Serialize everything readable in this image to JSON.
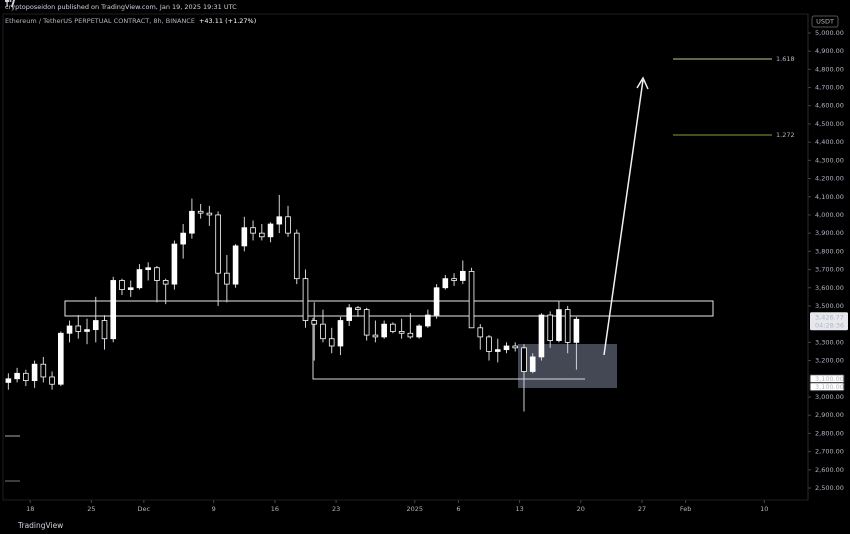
{
  "header": {
    "byline": "cryptoposeidon published on TradingView.com, Jan 19, 2025 19:31 UTC",
    "symbol": "Ethereum / TetherUS PERPETUAL CONTRACT, 8h, BINANCE",
    "change": "+43.11 (+1.27%)"
  },
  "chart_data": {
    "type": "candlestick",
    "open": [
      3080,
      3100,
      3130,
      3090,
      3180,
      3110,
      3070,
      3350,
      3390,
      3360,
      3370,
      3420,
      3320,
      3640,
      3590,
      3600,
      3700,
      3710,
      3640,
      3620,
      3840,
      3900,
      4020,
      4010,
      4000,
      3680,
      3620,
      3830,
      3930,
      3900,
      3880,
      3950,
      3990,
      3900,
      3650,
      3420,
      3400,
      3320,
      3280,
      3420,
      3490,
      3480,
      3340,
      3330,
      3400,
      3360,
      3350,
      3330,
      3390,
      3450,
      3600,
      3650,
      3640,
      3690,
      3380,
      3330,
      3250,
      3260,
      3280,
      3270,
      3140,
      3220,
      3450,
      3310,
      3480,
      3300
    ],
    "high": [
      3130,
      3160,
      3150,
      3200,
      3220,
      3140,
      3360,
      3420,
      3450,
      3430,
      3550,
      3450,
      3660,
      3650,
      3640,
      3730,
      3740,
      3720,
      3650,
      3860,
      3950,
      4090,
      4060,
      4050,
      4020,
      3780,
      3840,
      3990,
      3970,
      3950,
      3960,
      4110,
      4050,
      3920,
      3700,
      3520,
      3480,
      3380,
      3440,
      3510,
      3500,
      3490,
      3420,
      3420,
      3410,
      3430,
      3460,
      3400,
      3480,
      3620,
      3670,
      3680,
      3750,
      3710,
      3400,
      3340,
      3320,
      3300,
      3300,
      3290,
      3240,
      3460,
      3470,
      3530,
      3500,
      3440
    ],
    "low": [
      3040,
      3080,
      3060,
      3050,
      3080,
      3040,
      3060,
      3300,
      3320,
      3290,
      3300,
      3260,
      3300,
      3560,
      3550,
      3590,
      3640,
      3520,
      3510,
      3590,
      3760,
      3870,
      3980,
      3940,
      3500,
      3520,
      3600,
      3800,
      3860,
      3860,
      3850,
      3900,
      3880,
      3620,
      3380,
      3200,
      3300,
      3240,
      3230,
      3390,
      3440,
      3310,
      3300,
      3320,
      3350,
      3320,
      3320,
      3320,
      3380,
      3430,
      3590,
      3610,
      3620,
      3380,
      3260,
      3200,
      3190,
      3240,
      3250,
      2920,
      3130,
      3200,
      3270,
      3300,
      3240,
      3150
    ],
    "close": [
      3100,
      3130,
      3090,
      3180,
      3110,
      3070,
      3350,
      3390,
      3360,
      3370,
      3420,
      3320,
      3640,
      3590,
      3600,
      3700,
      3710,
      3640,
      3620,
      3840,
      3900,
      4020,
      4010,
      4000,
      3680,
      3620,
      3830,
      3930,
      3900,
      3880,
      3950,
      3990,
      3900,
      3650,
      3420,
      3400,
      3320,
      3280,
      3420,
      3490,
      3480,
      3340,
      3330,
      3400,
      3360,
      3350,
      3330,
      3390,
      3450,
      3600,
      3650,
      3640,
      3690,
      3380,
      3330,
      3250,
      3260,
      3280,
      3270,
      3140,
      3220,
      3450,
      3310,
      3480,
      3300,
      3426.77
    ],
    "up_color": "#ffffff",
    "down_color": "#000000",
    "wick_color": "#d1d4dc",
    "xlim": [
      0,
      92
    ],
    "xticks": [
      {
        "value": 3,
        "label": "18"
      },
      {
        "value": 10,
        "label": "25"
      },
      {
        "value": 16,
        "label": "Dec"
      },
      {
        "value": 24,
        "label": "9"
      },
      {
        "value": 31,
        "label": "16"
      },
      {
        "value": 38,
        "label": "23"
      },
      {
        "value": 47,
        "label": "2025"
      },
      {
        "value": 52,
        "label": "6"
      },
      {
        "value": 59,
        "label": "13"
      },
      {
        "value": 66,
        "label": "20"
      },
      {
        "value": 73,
        "label": "27"
      },
      {
        "value": 78,
        "label": "Feb"
      },
      {
        "value": 87,
        "label": "10"
      }
    ],
    "ylim": [
      2434,
      5104
    ],
    "yticks": [
      {
        "value": 5000,
        "label": "5,000.00"
      },
      {
        "value": 4900,
        "label": "4,900.00"
      },
      {
        "value": 4800,
        "label": "4,800.00"
      },
      {
        "value": 4700,
        "label": "4,700.00"
      },
      {
        "value": 4600,
        "label": "4,600.00"
      },
      {
        "value": 4500,
        "label": "4,500.00"
      },
      {
        "value": 4400,
        "label": "4,400.00"
      },
      {
        "value": 4300,
        "label": "4,300.00"
      },
      {
        "value": 4200,
        "label": "4,200.00"
      },
      {
        "value": 4100,
        "label": "4,100.00"
      },
      {
        "value": 4000,
        "label": "4,000.00"
      },
      {
        "value": 3900,
        "label": "3,900.00"
      },
      {
        "value": 3800,
        "label": "3,800.00"
      },
      {
        "value": 3700,
        "label": "3,700.00"
      },
      {
        "value": 3600,
        "label": "3,600.00"
      },
      {
        "value": 3500,
        "label": "3,500.00"
      },
      {
        "value": 3300,
        "label": "3,300.00"
      },
      {
        "value": 3200,
        "label": "3,200.00"
      },
      {
        "value": 3000,
        "label": "3,000.00"
      },
      {
        "value": 2900,
        "label": "2,900.00"
      },
      {
        "value": 2800,
        "label": "2,800.00"
      },
      {
        "value": 2700,
        "label": "2,700.00"
      },
      {
        "value": 2600,
        "label": "2,600.00"
      },
      {
        "value": 2500,
        "label": "2,500.00"
      }
    ],
    "currency": "USDT",
    "last_price": {
      "value": 3426.77,
      "label": "3,426.77",
      "countdown": "04:28:36"
    },
    "level_labels": [
      {
        "value": 3100,
        "label": "3,100.00"
      },
      {
        "value": 3100,
        "label": "3,100.00"
      }
    ],
    "fib_levels": [
      {
        "label": "1.618",
        "color": "#c9cd8f"
      },
      {
        "label": "1.272",
        "color": "#8f9a3c"
      }
    ]
  },
  "footer": {
    "brand": "TradingView"
  }
}
